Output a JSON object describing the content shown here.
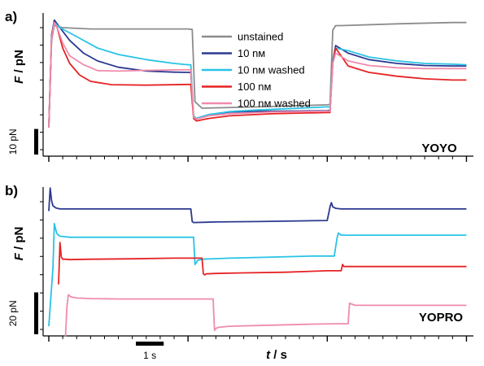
{
  "chart_data": [
    {
      "type": "line",
      "panel_label": "a)",
      "dye_label": "YOYO",
      "ylabel_var": "F",
      "ylabel_unit": " / pN",
      "scale_bar_label": "10 pN",
      "scale_bar_value": 10,
      "ylim": [
        12,
        68
      ],
      "xlim": [
        0,
        3.05
      ],
      "legend_position": "top-center",
      "series": [
        {
          "name": "unstained",
          "color": "#8c8c8c",
          "x": [
            0,
            0.02,
            0.04,
            0.06,
            0.1,
            0.3,
            0.6,
            1.0,
            1.03,
            1.05,
            1.1,
            1.5,
            2.0,
            2.02,
            2.04,
            2.06,
            2.1,
            2.5,
            2.9,
            3.0
          ],
          "y": [
            22,
            56,
            62,
            61.5,
            61,
            60.5,
            60.5,
            60.5,
            60.3,
            32,
            29.5,
            30,
            30.8,
            31,
            60,
            61.8,
            61.8,
            62.5,
            63,
            63
          ]
        },
        {
          "name": "10 nM",
          "color": "#2b3990",
          "x": [
            0,
            0.02,
            0.04,
            0.08,
            0.15,
            0.25,
            0.35,
            0.5,
            0.7,
            0.9,
            1.0,
            1.02,
            1.04,
            1.06,
            1.15,
            1.3,
            1.5,
            1.8,
            2.0,
            2.02,
            2.04,
            2.06,
            2.15,
            2.3,
            2.5,
            2.7,
            2.9,
            3.0
          ],
          "y": [
            22,
            58,
            64,
            61,
            56,
            51,
            48,
            45.5,
            44,
            43.6,
            43.5,
            43.5,
            26,
            25.5,
            27,
            28,
            28.3,
            28.4,
            28.5,
            28.6,
            48,
            54,
            51,
            48.5,
            47,
            46.2,
            46,
            46
          ]
        },
        {
          "name": "10 nM washed",
          "color": "#29c3e6",
          "x": [
            0,
            0.02,
            0.04,
            0.08,
            0.2,
            0.35,
            0.5,
            0.7,
            0.9,
            1.0,
            1.02,
            1.04,
            1.06,
            1.15,
            1.3,
            1.5,
            1.8,
            2.0,
            2.02,
            2.04,
            2.06,
            2.15,
            2.3,
            2.5,
            2.7,
            2.9,
            3.0
          ],
          "y": [
            22,
            57,
            63,
            61,
            57.5,
            53,
            50.5,
            48.5,
            47,
            46.5,
            46.5,
            26.5,
            25.5,
            27,
            28.2,
            28.8,
            29.5,
            30,
            30,
            48,
            53,
            52,
            49.5,
            48,
            47,
            46.7,
            46.5
          ]
        },
        {
          "name": "100 nM",
          "color": "#e52325",
          "x": [
            0,
            0.02,
            0.04,
            0.06,
            0.1,
            0.15,
            0.22,
            0.3,
            0.45,
            0.7,
            1.0,
            1.02,
            1.04,
            1.06,
            1.15,
            1.3,
            1.6,
            2.0,
            2.02,
            2.04,
            2.06,
            2.15,
            2.3,
            2.5,
            2.7,
            2.9,
            3.0
          ],
          "y": [
            22,
            57,
            63,
            61,
            53,
            47,
            42.5,
            40,
            38.7,
            38.5,
            38.8,
            38.8,
            25.5,
            24.5,
            25.5,
            26.5,
            27.3,
            27.8,
            27.8,
            47,
            53,
            46,
            43.5,
            42,
            41,
            40.5,
            40.5
          ]
        },
        {
          "name": "100 nM washed",
          "color": "#f08bac",
          "x": [
            0,
            0.02,
            0.04,
            0.06,
            0.1,
            0.15,
            0.25,
            0.35,
            0.5,
            0.7,
            0.9,
            1.0,
            1.02,
            1.04,
            1.06,
            1.15,
            1.3,
            1.6,
            2.0,
            2.02,
            2.04,
            2.06,
            2.15,
            2.3,
            2.5,
            2.7,
            2.9,
            3.0
          ],
          "y": [
            22,
            57,
            63,
            61,
            55,
            50,
            46.5,
            44.2,
            44,
            44.3,
            44.5,
            44.5,
            44.5,
            26,
            25.2,
            26.5,
            27.3,
            28,
            28.3,
            28.3,
            47,
            51,
            48,
            46.2,
            45.3,
            45,
            45,
            45
          ]
        }
      ]
    },
    {
      "type": "line",
      "panel_label": "b)",
      "dye_label": "YOPRO",
      "ylabel_var": "F",
      "ylabel_unit": " / pN",
      "scale_bar_label": "20 pN",
      "scale_bar_value": 20,
      "ylim": [
        -5,
        68
      ],
      "xlim": [
        0,
        3.05
      ],
      "xlabel_var": "t",
      "xlabel_unit": " / s",
      "time_scale_label": "1 s",
      "time_scale_value": 1,
      "series": [
        {
          "name": "10 nM",
          "color": "#2b3990",
          "x": [
            0,
            0.01,
            0.02,
            0.03,
            0.05,
            0.08,
            0.2,
            0.5,
            0.8,
            1.0,
            1.02,
            1.03,
            1.04,
            1.2,
            1.5,
            1.8,
            2.0,
            2.02,
            2.03,
            2.04,
            2.06,
            2.1,
            2.5,
            2.9,
            3.0
          ],
          "y": [
            55,
            66,
            60,
            57.5,
            56.5,
            56,
            56,
            56,
            56,
            56,
            56,
            50,
            49.5,
            49.8,
            50,
            50.3,
            50.5,
            57,
            59,
            57,
            56.3,
            56,
            56,
            56,
            56
          ]
        },
        {
          "name": "10 nM washed",
          "color": "#29c3e6",
          "x": [
            0,
            0.03,
            0.04,
            0.05,
            0.06,
            0.08,
            0.15,
            0.3,
            0.6,
            1.0,
            1.04,
            1.05,
            1.06,
            1.07,
            1.1,
            1.3,
            1.6,
            1.9,
            2.05,
            2.07,
            2.08,
            2.1,
            2.5,
            2.9,
            3.0
          ],
          "y": [
            0,
            28,
            49,
            46,
            44,
            43,
            42.5,
            42.5,
            42.5,
            42.5,
            42.5,
            29.5,
            30.5,
            31.5,
            32,
            32.5,
            33,
            33.5,
            33.5,
            42,
            44.5,
            43.5,
            43.5,
            43.5,
            43.5
          ]
        },
        {
          "name": "100 nM",
          "color": "#e52325",
          "x": [
            0.07,
            0.08,
            0.09,
            0.1,
            0.12,
            0.15,
            0.3,
            0.6,
            0.9,
            1.1,
            1.11,
            1.12,
            1.13,
            1.2,
            1.4,
            1.7,
            2.0,
            2.1,
            2.11,
            2.12,
            2.14,
            2.2,
            2.6,
            3.0
          ],
          "y": [
            20,
            40,
            33,
            32,
            32,
            31.8,
            32,
            32.2,
            32.5,
            32.5,
            25,
            24.5,
            25,
            25.2,
            25.5,
            25.8,
            26.5,
            26.5,
            29.5,
            28.5,
            28.5,
            28.5,
            28.5,
            28.5
          ]
        },
        {
          "name": "100 nM washed",
          "color": "#f08bac",
          "x": [
            0.12,
            0.13,
            0.14,
            0.16,
            0.2,
            0.3,
            0.5,
            0.8,
            1.1,
            1.18,
            1.19,
            1.2,
            1.22,
            1.3,
            1.6,
            1.9,
            2.1,
            2.15,
            2.16,
            2.18,
            2.2,
            2.6,
            3.0
          ],
          "y": [
            -5,
            9,
            15,
            14,
            13.5,
            13.2,
            13,
            13,
            13,
            13,
            -2,
            -1,
            -0.5,
            0,
            0.5,
            1,
            1.2,
            1.2,
            11,
            10.5,
            10,
            10,
            10
          ]
        }
      ]
    }
  ]
}
